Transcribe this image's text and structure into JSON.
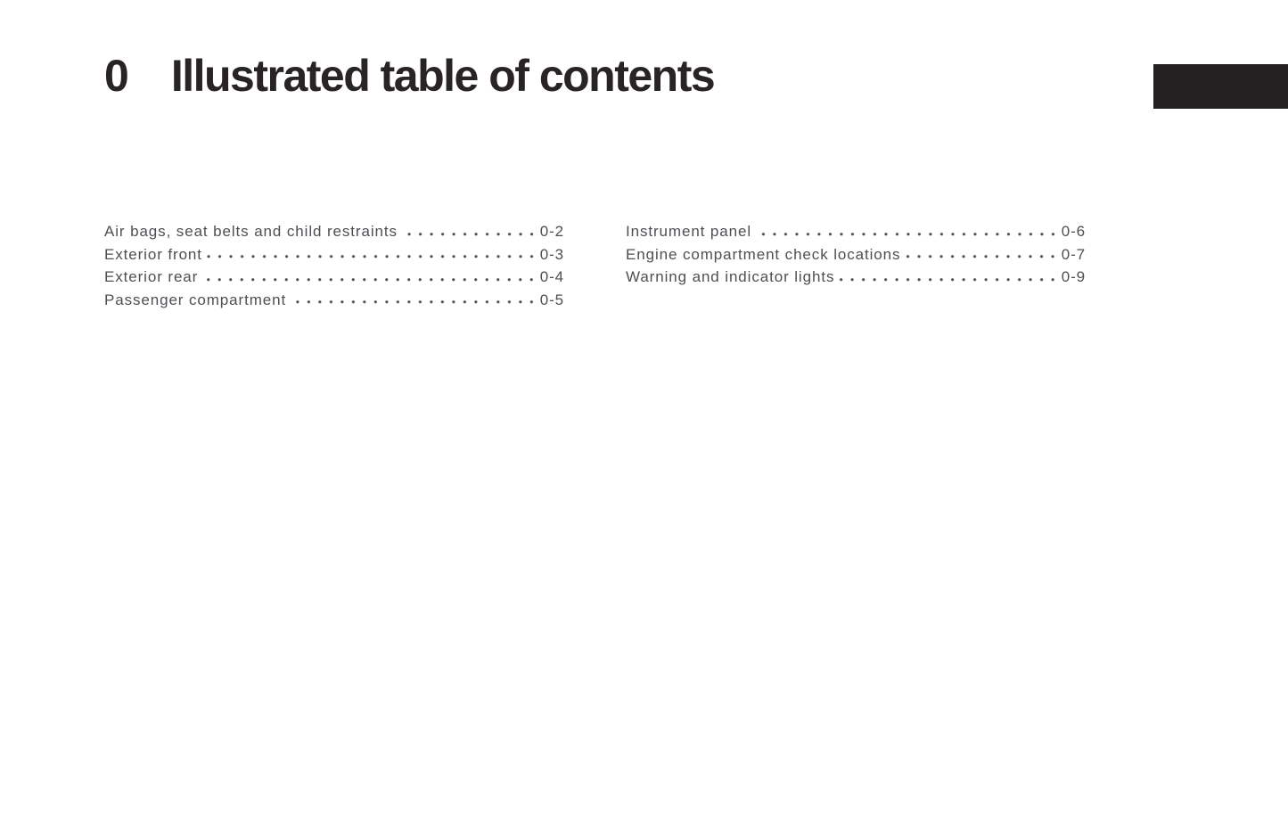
{
  "header": {
    "chapter_number": "0",
    "title": "Illustrated table of contents"
  },
  "toc": {
    "left": [
      {
        "label": "Air bags, seat belts and child restraints",
        "page": "0-2"
      },
      {
        "label": "Exterior front",
        "page": "0-3"
      },
      {
        "label": "Exterior rear",
        "page": "0-4"
      },
      {
        "label": "Passenger compartment",
        "page": "0-5"
      }
    ],
    "right": [
      {
        "label": "Instrument panel",
        "page": "0-6"
      },
      {
        "label": "Engine compartment check locations",
        "page": "0-7"
      },
      {
        "label": "Warning and indicator lights",
        "page": "0-9"
      }
    ]
  },
  "colors": {
    "title": "#282425",
    "text": "#4e4f53",
    "tab": "#242021",
    "background": "#ffffff"
  }
}
